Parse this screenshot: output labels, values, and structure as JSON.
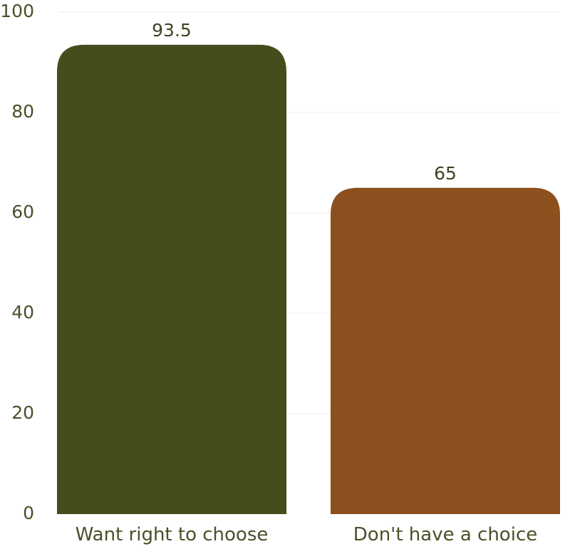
{
  "chart_data": {
    "type": "bar",
    "categories": [
      "Want right to choose",
      "Don't have a choice"
    ],
    "values": [
      93.5,
      65
    ],
    "data_labels": [
      "93.5",
      "65"
    ],
    "colors": [
      "#474c1d",
      "#8b501e"
    ],
    "title": "",
    "xlabel": "",
    "ylabel": "",
    "ylim": [
      0,
      100
    ],
    "yticks": [
      0,
      20,
      40,
      60,
      80,
      100
    ],
    "ytick_labels": [
      "0",
      "20",
      "40",
      "60",
      "80",
      "100"
    ],
    "grid": true,
    "legend": "none"
  }
}
